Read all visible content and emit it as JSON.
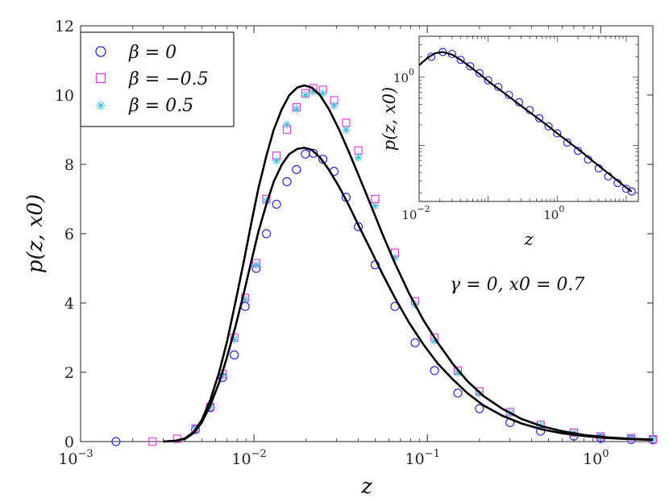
{
  "chart_data": [
    {
      "type": "line",
      "xscale": "log",
      "xlim": [
        0.001,
        2
      ],
      "ylim": [
        0,
        12
      ],
      "xlabel": "z",
      "ylabel": "p(z, x0)",
      "xtick_mantissa": "10",
      "xticks": [
        {
          "value": 0.001,
          "exp": "−3"
        },
        {
          "value": 0.01,
          "exp": "−2"
        },
        {
          "value": 0.1,
          "exp": "−1"
        },
        {
          "value": 1,
          "exp": "0"
        }
      ],
      "yticks": [
        0,
        2,
        4,
        6,
        8,
        10,
        12
      ],
      "grid": false,
      "legend_placement": "top-left",
      "annotation": "γ = 0, x0 = 0.7",
      "series": [
        {
          "name": "β = 0",
          "marker": "circle",
          "color": "#2b2bd9",
          "x": [
            0.0016,
            0.0046,
            0.0056,
            0.0066,
            0.0077,
            0.0089,
            0.0103,
            0.0118,
            0.0135,
            0.0155,
            0.0176,
            0.0198,
            0.022,
            0.025,
            0.029,
            0.034,
            0.04,
            0.05,
            0.065,
            0.085,
            0.11,
            0.15,
            0.2,
            0.3,
            0.45,
            0.7,
            1.0,
            1.5,
            2.0
          ],
          "y": [
            0,
            0.35,
            0.98,
            1.85,
            2.5,
            3.9,
            5.0,
            6.0,
            6.85,
            7.5,
            7.85,
            8.3,
            8.32,
            8.15,
            7.8,
            7.05,
            6.2,
            5.1,
            3.9,
            2.85,
            2.05,
            1.4,
            0.95,
            0.55,
            0.3,
            0.16,
            0.09,
            0.06,
            0.05
          ]
        },
        {
          "name": "β = −0.5",
          "marker": "square",
          "color": "#e53fe0",
          "x": [
            0.0026,
            0.0036,
            0.0046,
            0.0056,
            0.0066,
            0.0077,
            0.0089,
            0.0103,
            0.0118,
            0.0135,
            0.0155,
            0.0176,
            0.0198,
            0.022,
            0.025,
            0.029,
            0.034,
            0.04,
            0.05,
            0.065,
            0.085,
            0.11,
            0.15,
            0.2,
            0.3,
            0.45,
            0.7,
            1.0,
            1.5,
            2.0
          ],
          "y": [
            0,
            0.08,
            0.38,
            1.0,
            1.95,
            3.0,
            4.15,
            5.15,
            7.0,
            8.25,
            9.0,
            9.65,
            10.05,
            10.2,
            10.15,
            9.85,
            9.2,
            8.4,
            7.0,
            5.45,
            4.05,
            3.0,
            2.05,
            1.45,
            0.85,
            0.48,
            0.26,
            0.15,
            0.1,
            0.07
          ]
        },
        {
          "name": "β = 0.5",
          "marker": "star",
          "color": "#4bbfe0",
          "x": [
            0.0046,
            0.0056,
            0.0066,
            0.0077,
            0.0089,
            0.0103,
            0.0118,
            0.0135,
            0.0155,
            0.0176,
            0.0198,
            0.022,
            0.025,
            0.029,
            0.034,
            0.04,
            0.05,
            0.065,
            0.085,
            0.11,
            0.15,
            0.2,
            0.3,
            0.45,
            0.7,
            1.0,
            1.5,
            2.0
          ],
          "y": [
            0.38,
            1.0,
            1.9,
            2.95,
            4.1,
            5.1,
            6.95,
            8.1,
            9.15,
            9.6,
            10.0,
            10.1,
            10.05,
            9.7,
            9.0,
            8.2,
            6.8,
            5.3,
            3.95,
            2.9,
            1.98,
            1.38,
            0.82,
            0.46,
            0.25,
            0.15,
            0.1,
            0.07
          ]
        },
        {
          "name": "",
          "marker": "none",
          "color": "#000000",
          "x": [
            0.003,
            0.0035,
            0.004,
            0.0045,
            0.005,
            0.0056,
            0.0063,
            0.007,
            0.0078,
            0.0087,
            0.0096,
            0.0106,
            0.0118,
            0.013,
            0.0145,
            0.016,
            0.0178,
            0.0195,
            0.0215,
            0.024,
            0.027,
            0.031,
            0.035,
            0.04,
            0.047,
            0.055,
            0.065,
            0.078,
            0.095,
            0.115,
            0.14,
            0.17,
            0.21,
            0.27,
            0.35,
            0.46,
            0.6,
            0.8,
            1.1,
            1.5,
            2.0
          ],
          "y": [
            0,
            0.02,
            0.08,
            0.25,
            0.55,
            1.05,
            1.7,
            2.45,
            3.3,
            4.25,
            5.15,
            6.05,
            6.85,
            7.5,
            8.0,
            8.3,
            8.45,
            8.48,
            8.42,
            8.2,
            7.85,
            7.35,
            6.85,
            6.25,
            5.55,
            4.85,
            4.15,
            3.45,
            2.8,
            2.25,
            1.8,
            1.4,
            1.05,
            0.75,
            0.52,
            0.35,
            0.24,
            0.16,
            0.1,
            0.07,
            0.05
          ]
        },
        {
          "name": "",
          "marker": "none",
          "color": "#000000",
          "x": [
            0.003,
            0.0035,
            0.004,
            0.0045,
            0.005,
            0.0056,
            0.0063,
            0.007,
            0.0078,
            0.0087,
            0.0096,
            0.0106,
            0.0118,
            0.013,
            0.0145,
            0.016,
            0.0178,
            0.0195,
            0.0215,
            0.024,
            0.027,
            0.031,
            0.035,
            0.04,
            0.047,
            0.055,
            0.065,
            0.078,
            0.095,
            0.115,
            0.14,
            0.17,
            0.21,
            0.27,
            0.35,
            0.46,
            0.6,
            0.8,
            1.1,
            1.5,
            2.0
          ],
          "y": [
            0,
            0.02,
            0.09,
            0.28,
            0.62,
            1.2,
            2.0,
            2.9,
            4.0,
            5.15,
            6.25,
            7.3,
            8.25,
            9.0,
            9.6,
            10.0,
            10.22,
            10.28,
            10.22,
            10.0,
            9.6,
            9.0,
            8.4,
            7.7,
            6.85,
            6.0,
            5.15,
            4.3,
            3.5,
            2.85,
            2.25,
            1.75,
            1.32,
            0.95,
            0.65,
            0.44,
            0.3,
            0.19,
            0.12,
            0.08,
            0.06
          ]
        }
      ]
    },
    {
      "type": "line",
      "inset": true,
      "xscale": "log",
      "yscale": "log",
      "xlim": [
        0.01,
        15
      ],
      "ylim": [
        0.015,
        4
      ],
      "xlabel": "z",
      "ylabel": "p(z, x0)",
      "xtick_mantissa": "10",
      "xticks": [
        {
          "value": 0.01,
          "exp": "−2"
        },
        {
          "value": 1,
          "exp": "0"
        }
      ],
      "yticks": [
        {
          "value": 1,
          "mantissa": "10",
          "exp": "0"
        }
      ],
      "series": [
        {
          "name": "β = 0",
          "marker": "circle",
          "color": "#2b2bd9",
          "x": [
            0.015,
            0.022,
            0.03,
            0.04,
            0.055,
            0.075,
            0.1,
            0.14,
            0.2,
            0.28,
            0.4,
            0.55,
            0.75,
            1.0,
            1.4,
            2.0,
            2.8,
            4.0,
            5.5,
            7.5,
            10,
            12
          ],
          "y": [
            2.0,
            2.35,
            2.2,
            1.8,
            1.45,
            1.15,
            0.9,
            0.72,
            0.55,
            0.43,
            0.33,
            0.25,
            0.19,
            0.15,
            0.11,
            0.083,
            0.062,
            0.046,
            0.035,
            0.028,
            0.023,
            0.021
          ]
        },
        {
          "name": "",
          "marker": "none",
          "color": "#000000",
          "x": [
            0.01,
            0.013,
            0.017,
            0.022,
            0.03,
            0.04,
            0.055,
            0.075,
            0.1,
            0.14,
            0.2,
            0.3,
            0.45,
            0.7,
            1.0,
            1.5,
            2.2,
            3.2,
            4.7,
            7.0,
            10,
            12
          ],
          "y": [
            1.5,
            1.9,
            2.25,
            2.35,
            2.15,
            1.8,
            1.42,
            1.12,
            0.88,
            0.68,
            0.52,
            0.38,
            0.28,
            0.2,
            0.15,
            0.11,
            0.082,
            0.06,
            0.044,
            0.032,
            0.024,
            0.021
          ]
        }
      ]
    }
  ]
}
